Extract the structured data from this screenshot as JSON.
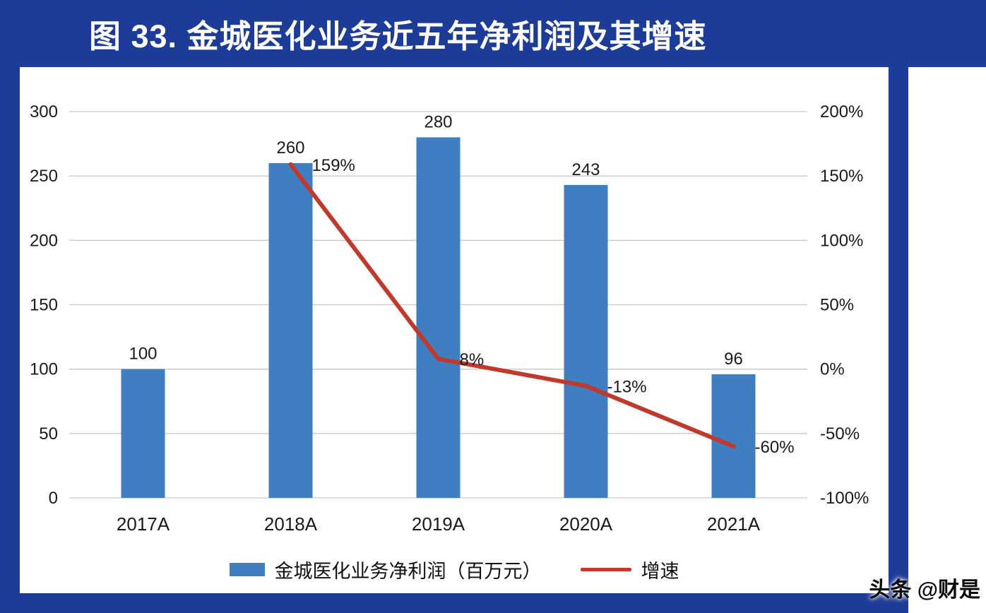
{
  "header": {
    "title": "图 33. 金城医化业务近五年净利润及其增速"
  },
  "watermark": {
    "text": "头条 @财是"
  },
  "colors": {
    "frame": "#1d3c97",
    "bar": "#3f7ec0",
    "line": "#c0392b",
    "grid": "#c9c9c9",
    "axis_text": "#1a1a1a"
  },
  "chart_data": {
    "type": "combo",
    "title": "图 33. 金城医化业务近五年净利润及其增速",
    "categories": [
      "2017A",
      "2018A",
      "2019A",
      "2020A",
      "2021A"
    ],
    "series": [
      {
        "name": "金城医化业务净利润（百万元）",
        "type": "bar",
        "axis": "left",
        "values": [
          100,
          260,
          280,
          243,
          96
        ],
        "labels": [
          "100",
          "260",
          "280",
          "243",
          "96"
        ],
        "color": "#3f7ec0"
      },
      {
        "name": "增速",
        "type": "line",
        "axis": "right",
        "values": [
          null,
          159,
          8,
          -13,
          -60
        ],
        "labels": [
          "",
          "159%",
          "8%",
          "-13%",
          "-60%"
        ],
        "color": "#c0392b"
      }
    ],
    "left_axis": {
      "min": 0,
      "max": 300,
      "step": 50,
      "ticks": [
        "300",
        "250",
        "200",
        "150",
        "100",
        "50",
        "0"
      ]
    },
    "right_axis": {
      "min": -100,
      "max": 200,
      "step": 50,
      "ticks": [
        "200%",
        "150%",
        "100%",
        "50%",
        "0%",
        "-50%",
        "-100%"
      ]
    },
    "grid": true,
    "legend_position": "bottom"
  }
}
